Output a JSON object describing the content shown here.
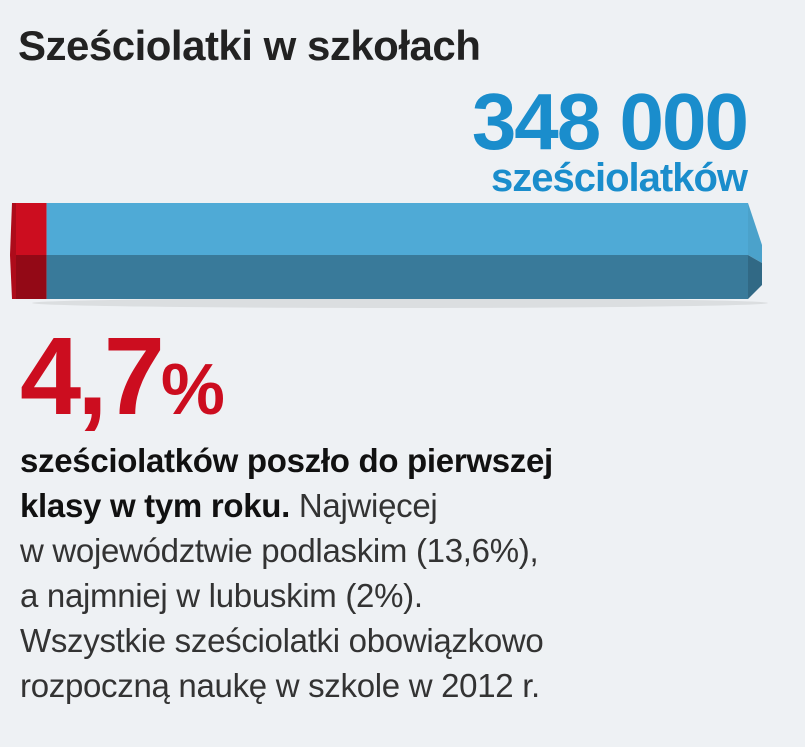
{
  "title": "Sześciolatki w szkołach",
  "total": {
    "value": "348 000",
    "unit": "sześciolatków"
  },
  "highlight": {
    "number": "4,7",
    "suffix": "%"
  },
  "description": {
    "line1_bold": "sześciolatków poszło do pierwszej",
    "line2_bold": "klasy w tym roku.",
    "line2_rest": " Najwięcej",
    "line3": "w województwie podlaskim (13,6%),",
    "line4": "a najmniej w lubuskim (2%).",
    "line5": "Wszystkie sześciolatki obowiązkowo",
    "line6": "rozpoczną naukę w szkole w 2012 r."
  },
  "chart_data": {
    "type": "bar",
    "orientation": "horizontal-stacked",
    "total": 348000,
    "segments": [
      {
        "value": 4.7,
        "color": "#cc0d1f"
      },
      {
        "value": 95.3,
        "color": "#4faad6"
      }
    ],
    "unit": "%"
  }
}
